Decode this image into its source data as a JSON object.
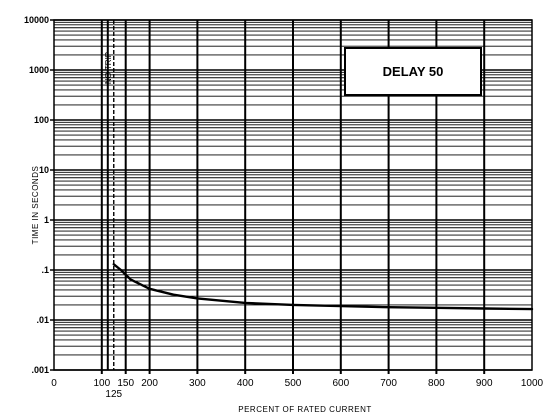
{
  "chart_data": {
    "type": "line",
    "title": "",
    "xlabel": "PERCENT OF RATED CURRENT",
    "ylabel": "TIME IN SECONDS",
    "xlim": [
      0,
      1000
    ],
    "ylim": [
      0.001,
      10000
    ],
    "y_scale": "log",
    "grid": true,
    "x_ticks": [
      {
        "value": 0,
        "label": "0"
      },
      {
        "value": 100,
        "label": "100"
      },
      {
        "value": 150,
        "label": "150"
      },
      {
        "value": 200,
        "label": "200"
      },
      {
        "value": 300,
        "label": "300"
      },
      {
        "value": 400,
        "label": "400"
      },
      {
        "value": 500,
        "label": "500"
      },
      {
        "value": 600,
        "label": "600"
      },
      {
        "value": 700,
        "label": "700"
      },
      {
        "value": 800,
        "label": "800"
      },
      {
        "value": 900,
        "label": "900"
      },
      {
        "value": 1000,
        "label": "1000"
      }
    ],
    "extra_x_tick": {
      "value": 125,
      "label": "125"
    },
    "y_ticks": [
      {
        "value": 10000,
        "label": "10000"
      },
      {
        "value": 1000,
        "label": "1000"
      },
      {
        "value": 100,
        "label": "100"
      },
      {
        "value": 10,
        "label": "10"
      },
      {
        "value": 1,
        "label": "1"
      },
      {
        "value": 0.1,
        "label": ".1"
      },
      {
        "value": 0.01,
        "label": ".01"
      },
      {
        "value": 0.001,
        "label": ".001"
      }
    ],
    "legend": {
      "text": "DELAY 50",
      "position": "top-right"
    },
    "reference": {
      "x": 100,
      "label": "NO TRIP"
    },
    "series": [
      {
        "name": "DELAY 50",
        "color": "#000000",
        "x": [
          125,
          140,
          160,
          200,
          250,
          300,
          400,
          500,
          600,
          700,
          800,
          900,
          1000
        ],
        "y": [
          0.13,
          0.1,
          0.065,
          0.042,
          0.032,
          0.027,
          0.022,
          0.02,
          0.019,
          0.018,
          0.0175,
          0.017,
          0.0165
        ]
      }
    ]
  }
}
